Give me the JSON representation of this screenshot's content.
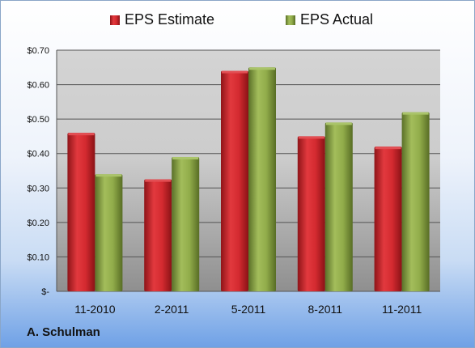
{
  "chart_data": {
    "type": "bar",
    "categories": [
      "11-2010",
      "2-2011",
      "5-2011",
      "8-2011",
      "11-2011"
    ],
    "series": [
      {
        "name": "EPS Estimate",
        "values": [
          0.46,
          0.325,
          0.64,
          0.45,
          0.42
        ],
        "color": "#c0272d"
      },
      {
        "name": "EPS Actual",
        "values": [
          0.34,
          0.39,
          0.65,
          0.49,
          0.52
        ],
        "color": "#7f9a3a"
      }
    ],
    "ylim": [
      0,
      0.7
    ],
    "yticks": [
      0,
      0.1,
      0.2,
      0.3,
      0.4,
      0.5,
      0.6,
      0.7
    ],
    "ytick_labels": [
      "$-",
      "$0.10",
      "$0.20",
      "$0.30",
      "$0.40",
      "$0.50",
      "$0.60",
      "$0.70"
    ],
    "legend_position": "top",
    "grid": true
  },
  "footer": {
    "company": "A. Schulman"
  }
}
